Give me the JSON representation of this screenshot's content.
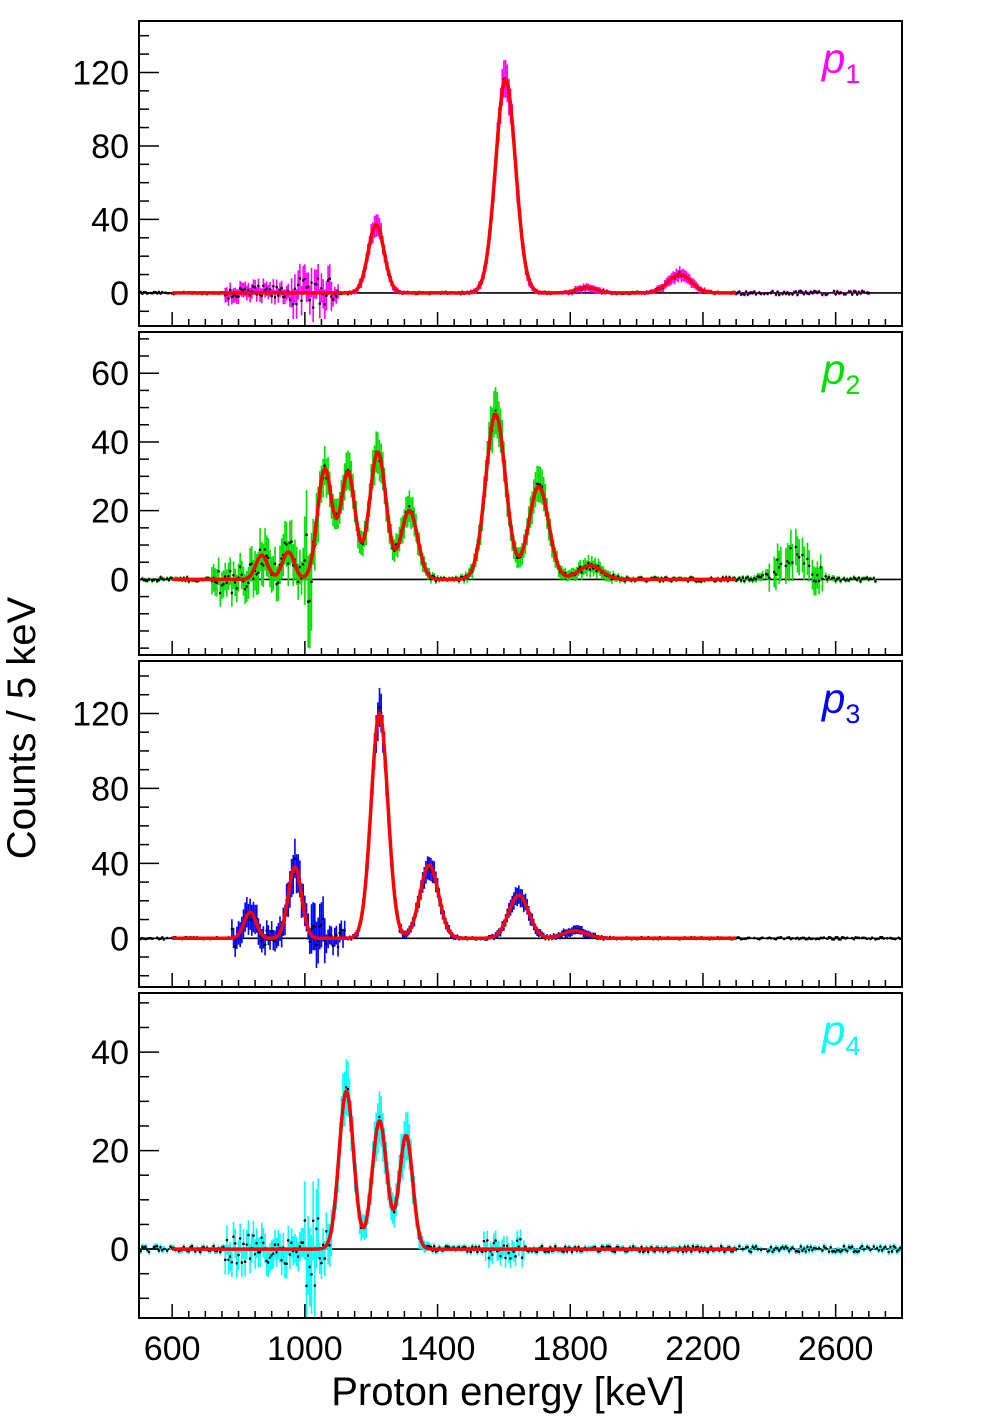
{
  "chart_data": {
    "type": "line",
    "xlabel": "Proton energy [keV]",
    "ylabel": "Counts / 5 keV",
    "xlim": [
      500,
      2800
    ],
    "x_ticks": [
      600,
      1000,
      1400,
      1800,
      2200,
      2600
    ],
    "fit_range": [
      600,
      2300
    ],
    "fit_color": "#ff0000",
    "panels": [
      {
        "label": "p",
        "label_sub": "1",
        "color": "#ff00ff",
        "ylim": [
          -18,
          148
        ],
        "y_ticks": [
          0,
          40,
          80,
          120
        ],
        "peaks": [
          {
            "center": 1215,
            "height": 37,
            "sigma": 24
          },
          {
            "center": 1605,
            "height": 116,
            "sigma": 30
          },
          {
            "center": 1850,
            "height": 3,
            "sigma": 30
          },
          {
            "center": 2130,
            "height": 10,
            "sigma": 35
          }
        ],
        "noise": [
          {
            "from": 760,
            "to": 1100,
            "amp": 4
          },
          {
            "from": 960,
            "to": 1080,
            "amp": 8
          },
          {
            "from": 2300,
            "to": 2700,
            "amp": 1
          }
        ],
        "data_range": [
          500,
          2700
        ]
      },
      {
        "label": "p",
        "label_sub": "2",
        "color": "#00e000",
        "ylim": [
          -22,
          72
        ],
        "y_ticks": [
          0,
          20,
          40,
          60
        ],
        "peaks": [
          {
            "center": 870,
            "height": 7,
            "sigma": 18
          },
          {
            "center": 950,
            "height": 8,
            "sigma": 18
          },
          {
            "center": 1060,
            "height": 32,
            "sigma": 22
          },
          {
            "center": 1130,
            "height": 31,
            "sigma": 22
          },
          {
            "center": 1220,
            "height": 37,
            "sigma": 25
          },
          {
            "center": 1315,
            "height": 20,
            "sigma": 25
          },
          {
            "center": 1575,
            "height": 48,
            "sigma": 30
          },
          {
            "center": 1705,
            "height": 27,
            "sigma": 30
          },
          {
            "center": 1860,
            "height": 4,
            "sigma": 35
          }
        ],
        "noise": [
          {
            "from": 720,
            "to": 1040,
            "amp": 4
          },
          {
            "from": 1000,
            "to": 1020,
            "amp": 12
          },
          {
            "from": 2400,
            "to": 2560,
            "amp": 3
          }
        ],
        "extra_bump": {
          "center": 2470,
          "height": 7,
          "sigma": 40
        },
        "data_range": [
          500,
          2720
        ]
      },
      {
        "label": "p",
        "label_sub": "3",
        "color": "#0000ff",
        "ylim": [
          -26,
          148
        ],
        "y_ticks": [
          0,
          40,
          80,
          120
        ],
        "peaks": [
          {
            "center": 835,
            "height": 14,
            "sigma": 18
          },
          {
            "center": 970,
            "height": 38,
            "sigma": 20
          },
          {
            "center": 1225,
            "height": 120,
            "sigma": 25
          },
          {
            "center": 1375,
            "height": 39,
            "sigma": 28
          },
          {
            "center": 1645,
            "height": 23,
            "sigma": 30
          },
          {
            "center": 1815,
            "height": 4,
            "sigma": 35
          }
        ],
        "noise": [
          {
            "from": 780,
            "to": 1120,
            "amp": 5
          },
          {
            "from": 1020,
            "to": 1060,
            "amp": 12
          }
        ],
        "data_range": [
          500,
          2800
        ]
      },
      {
        "label": "p",
        "label_sub": "4",
        "color": "#00ffff",
        "ylim": [
          -14,
          52
        ],
        "y_ticks": [
          0,
          20,
          40
        ],
        "peaks": [
          {
            "center": 1125,
            "height": 32,
            "sigma": 22
          },
          {
            "center": 1225,
            "height": 26,
            "sigma": 22
          },
          {
            "center": 1305,
            "height": 23,
            "sigma": 20
          }
        ],
        "noise": [
          {
            "from": 760,
            "to": 1080,
            "amp": 3
          },
          {
            "from": 1000,
            "to": 1040,
            "amp": 8
          },
          {
            "from": 1540,
            "to": 1660,
            "amp": 2
          }
        ],
        "data_range": [
          500,
          2800
        ]
      }
    ]
  }
}
